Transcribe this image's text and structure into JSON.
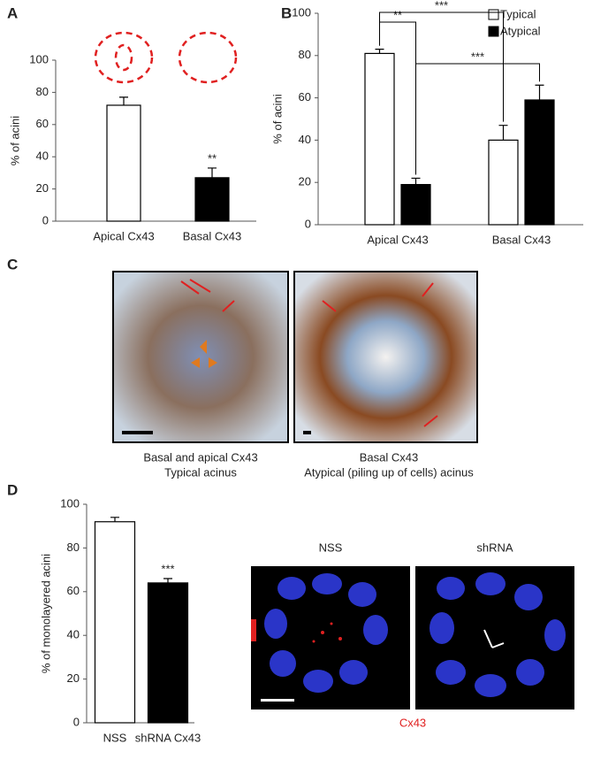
{
  "panels": {
    "letters": [
      "A",
      "B",
      "C",
      "D"
    ],
    "c_captions": [
      [
        "Basal and apical Cx43",
        "Typical acinus"
      ],
      [
        "Basal Cx43",
        "Atypical (piling up of cells) acinus"
      ]
    ],
    "d_image_titles": [
      "NSS",
      "shRNA"
    ],
    "d_stain": "Cx43"
  },
  "chart_data": [
    {
      "type": "bar",
      "y_label": "% of acini",
      "categories": [
        "Apical Cx43",
        "Basal Cx43"
      ],
      "values": [
        72,
        27
      ],
      "errors": [
        5,
        6
      ],
      "colors": [
        "#ffffff",
        "#000000"
      ],
      "significance": [
        null,
        "**"
      ],
      "ylim": [
        0,
        100
      ],
      "yticks": [
        0,
        20,
        40,
        60,
        80,
        100
      ]
    },
    {
      "type": "grouped-bar",
      "y_label": "% of acini",
      "categories": [
        "Apical Cx43",
        "Basal Cx43"
      ],
      "series": [
        {
          "name": "Typical",
          "color": "#ffffff",
          "values": [
            81,
            40
          ],
          "errors": [
            2,
            7
          ]
        },
        {
          "name": "Atypical",
          "color": "#000000",
          "values": [
            19,
            59
          ],
          "errors": [
            3,
            7
          ]
        }
      ],
      "comparisons": [
        "**",
        "***",
        "***"
      ],
      "ylim": [
        0,
        100
      ],
      "yticks": [
        0,
        20,
        40,
        60,
        80,
        100
      ]
    },
    {
      "type": "bar",
      "y_label": "% of monolayered acini",
      "categories": [
        "NSS",
        "shRNA Cx43"
      ],
      "values": [
        92,
        64
      ],
      "errors": [
        2,
        2
      ],
      "colors": [
        "#ffffff",
        "#000000"
      ],
      "significance": [
        null,
        "***"
      ],
      "ylim": [
        0,
        100
      ],
      "yticks": [
        0,
        20,
        40,
        60,
        80,
        100
      ]
    }
  ]
}
